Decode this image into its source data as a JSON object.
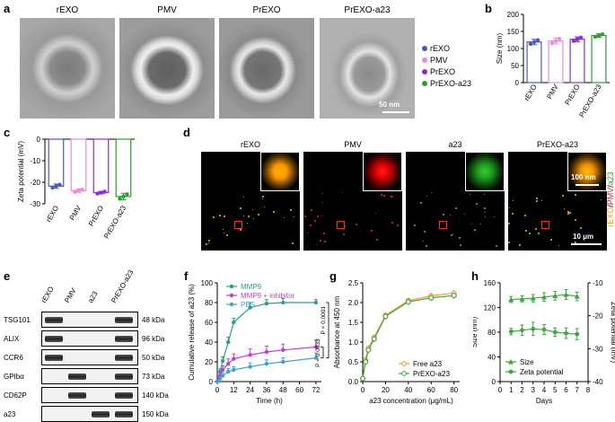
{
  "panels": {
    "a": {
      "label": "a",
      "titles": [
        "rEXO",
        "PMV",
        "PrEXO",
        "PrEXO-a23"
      ],
      "scale_bar": "50 nm",
      "legend": [
        {
          "name": "rEXO",
          "color": "#4a55d6"
        },
        {
          "name": "PMV",
          "color": "#f08ad8"
        },
        {
          "name": "PrEXO",
          "color": "#8a2be2"
        },
        {
          "name": "PrEXO-a23",
          "color": "#2ca02c"
        }
      ]
    },
    "b": {
      "label": "b"
    },
    "c": {
      "label": "c"
    },
    "d": {
      "label": "d",
      "titles": [
        "rEXO",
        "PMV",
        "a23",
        "PrEXO-a23"
      ],
      "inset_scale": "100 nm",
      "scale_bar": "10 μm",
      "side_label": [
        "rEXO",
        "/",
        "PMV",
        "/",
        "a23"
      ]
    },
    "e": {
      "label": "e",
      "lanes": [
        "rEXO",
        "PMV",
        "a23",
        "PrEXO-a23"
      ],
      "rows": [
        {
          "protein": "TSG101",
          "kda": "48 kDa",
          "bands": [
            1,
            0,
            0,
            1
          ]
        },
        {
          "protein": "ALIX",
          "kda": "96 kDa",
          "bands": [
            1,
            0,
            0,
            1
          ]
        },
        {
          "protein": "CCR6",
          "kda": "50 kDa",
          "bands": [
            1,
            0,
            0,
            1
          ]
        },
        {
          "protein": "GPIbα",
          "kda": "73 kDa",
          "bands": [
            0,
            1,
            0,
            1
          ]
        },
        {
          "protein": "CD62P",
          "kda": "140 kDa",
          "bands": [
            0,
            1,
            0,
            1
          ]
        },
        {
          "protein": "a23",
          "kda": "150 kDa",
          "bands": [
            0,
            0,
            1,
            1
          ]
        }
      ]
    },
    "f": {
      "label": "f"
    },
    "g": {
      "label": "g"
    },
    "h": {
      "label": "h"
    }
  },
  "chart_data": [
    {
      "id": "b",
      "type": "bar",
      "ylabel": "Size (nm)",
      "categories": [
        "rEXO",
        "PMV",
        "PrEXO",
        "PrEXO-a23"
      ],
      "values": [
        119,
        122,
        127,
        138
      ],
      "errors": [
        8,
        9,
        7,
        5
      ],
      "ylim": [
        0,
        200
      ],
      "yticks": [
        0,
        50,
        100,
        150,
        200
      ],
      "colors": [
        "#4a55d6",
        "#f08ad8",
        "#8a2be2",
        "#2ca02c"
      ]
    },
    {
      "id": "c",
      "type": "bar",
      "ylabel": "Zeta potential (mV)",
      "categories": [
        "rEXO",
        "PMV",
        "PrEXO",
        "PrEXO-a23"
      ],
      "values": [
        -21.8,
        -23.9,
        -24.8,
        -26.6
      ],
      "errors": [
        1.0,
        0.8,
        0.6,
        1.5
      ],
      "ylim": [
        -30,
        0
      ],
      "yticks": [
        0,
        -10,
        -20,
        -30
      ],
      "colors": [
        "#4a55d6",
        "#f08ad8",
        "#8a2be2",
        "#2ca02c"
      ]
    },
    {
      "id": "f",
      "type": "line",
      "ylabel": "Cumulative release of a23 (%)",
      "xlabel": "Time (h)",
      "x": [
        0,
        2,
        4,
        8,
        12,
        24,
        36,
        48,
        72
      ],
      "xticks": [
        0,
        12,
        24,
        36,
        48,
        60,
        72
      ],
      "ylim": [
        0,
        100
      ],
      "yticks": [
        0,
        20,
        40,
        60,
        80,
        100
      ],
      "series": [
        {
          "name": "MMP9",
          "color": "#2a9d8f",
          "values": [
            0,
            10,
            21,
            40,
            60,
            75,
            79,
            80,
            80
          ],
          "errors": [
            0,
            3,
            4,
            5,
            4,
            5,
            4,
            4,
            3
          ]
        },
        {
          "name": "MMP9 + inhibitor",
          "color": "#c43bd6",
          "values": [
            0,
            6,
            12,
            18,
            23,
            27,
            30,
            32,
            35
          ],
          "errors": [
            0,
            3,
            4,
            5,
            5,
            6,
            6,
            6,
            7
          ]
        },
        {
          "name": "PBS",
          "color": "#3aa0e0",
          "values": [
            0,
            3,
            6,
            10,
            12,
            15,
            18,
            20,
            24
          ],
          "errors": [
            0,
            2,
            3,
            3,
            3,
            4,
            4,
            4,
            5
          ]
        }
      ],
      "annotations": [
        "P = 0.0033",
        "P < 0.0001"
      ]
    },
    {
      "id": "g",
      "type": "line",
      "ylabel": "Absorbance at 450 nm",
      "xlabel": "a23 concentration (μg/mL)",
      "x": [
        0,
        2.5,
        5,
        10,
        20,
        40,
        60,
        80
      ],
      "xticks": [
        0,
        20,
        40,
        60,
        80
      ],
      "ylim": [
        0,
        2.5
      ],
      "yticks": [
        0.0,
        0.5,
        1.0,
        1.5,
        2.0,
        2.5
      ],
      "series": [
        {
          "name": "Free a23",
          "color": "#f39c34",
          "values": [
            0.08,
            0.55,
            0.85,
            1.12,
            1.68,
            2.05,
            2.17,
            2.24
          ]
        },
        {
          "name": "PrEXO-a23",
          "color": "#3aaa3a",
          "values": [
            0.08,
            0.5,
            0.8,
            1.08,
            1.65,
            2.02,
            2.12,
            2.18
          ]
        }
      ]
    },
    {
      "id": "h",
      "type": "line",
      "ylabel": "Size (nm)",
      "ylabel_right": "Zeta potential (mV)",
      "xlabel": "Days",
      "x": [
        1,
        2,
        3,
        4,
        5,
        6,
        7
      ],
      "xticks": [
        0,
        1,
        2,
        3,
        4,
        5,
        6,
        7,
        8
      ],
      "ylim": [
        0,
        160
      ],
      "yticks": [
        0,
        40,
        80,
        120,
        160
      ],
      "ylim_right": [
        -40,
        -10
      ],
      "yticks_right": [
        -10,
        -20,
        -30,
        -40
      ],
      "series": [
        {
          "name": "Size",
          "axis": "left",
          "marker": "triangle",
          "color": "#3aaa3a",
          "values": [
            133,
            134,
            135,
            137,
            139,
            141,
            138
          ],
          "errors": [
            5,
            5,
            6,
            7,
            7,
            8,
            7
          ]
        },
        {
          "name": "Zeta potential",
          "axis": "right",
          "marker": "circle",
          "color": "#3aaa3a",
          "values": [
            -24.8,
            -24.4,
            -24.0,
            -24.2,
            -25.0,
            -25.3,
            -25.6
          ],
          "errors": [
            1.0,
            1.6,
            2.0,
            1.5,
            1.3,
            1.6,
            1.7
          ]
        }
      ]
    }
  ]
}
